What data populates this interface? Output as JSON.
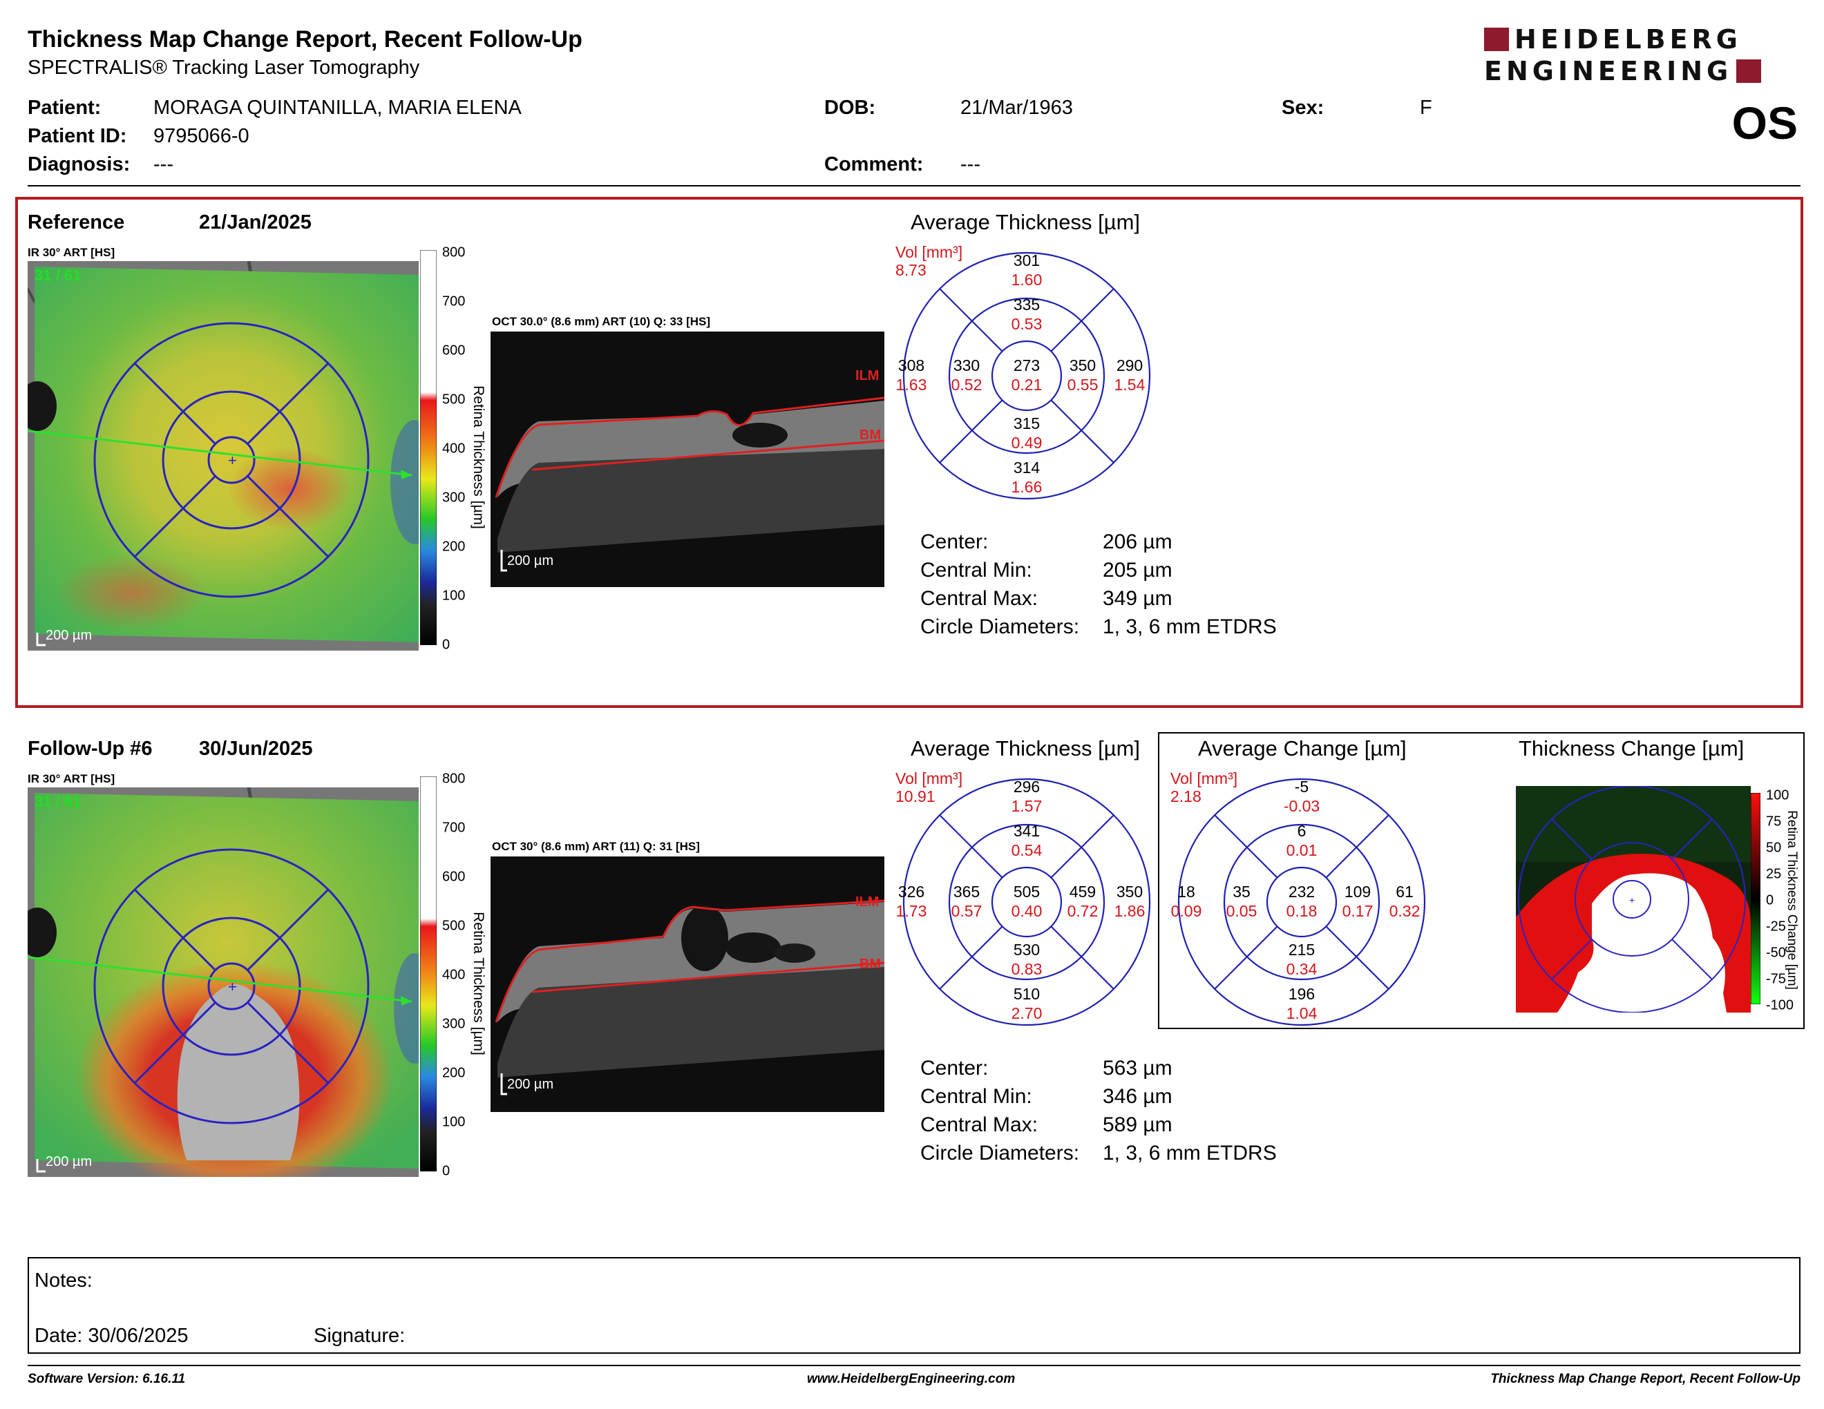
{
  "header": {
    "title": "Thickness Map Change Report, Recent Follow-Up",
    "subtitle": "SPECTRALIS® Tracking Laser Tomography",
    "logo_line1": "HEIDELBERG",
    "logo_line2": "ENGINEERING",
    "eye": "OS"
  },
  "patient": {
    "patient_label": "Patient:",
    "patient_value": "MORAGA QUINTANILLA, MARIA ELENA",
    "dob_label": "DOB:",
    "dob_value": "21/Mar/1963",
    "sex_label": "Sex:",
    "sex_value": "F",
    "id_label": "Patient ID:",
    "id_value": "9795066-0",
    "diagnosis_label": "Diagnosis:",
    "diagnosis_value": "---",
    "comment_label": "Comment:",
    "comment_value": "---"
  },
  "reference": {
    "label": "Reference",
    "date": "21/Jan/2025",
    "ir_label": "IR 30° ART [HS]",
    "ir_counter": "31 / 61",
    "oct_label": "OCT 30.0° (8.6 mm) ART (10) Q: 33 [HS]",
    "scale": "200 µm",
    "avg_title": "Average Thickness [µm]",
    "vol_label": "Vol [mm³]",
    "vol_total": "8.73",
    "sectors": {
      "center": {
        "t": "273",
        "v": "0.21"
      },
      "inner_sup": {
        "t": "335",
        "v": "0.53"
      },
      "inner_temp": {
        "t": "330",
        "v": "0.52"
      },
      "inner_nas": {
        "t": "350",
        "v": "0.55"
      },
      "inner_inf": {
        "t": "315",
        "v": "0.49"
      },
      "outer_sup": {
        "t": "301",
        "v": "1.60"
      },
      "outer_temp": {
        "t": "308",
        "v": "1.63"
      },
      "outer_nas": {
        "t": "290",
        "v": "1.54"
      },
      "outer_inf": {
        "t": "314",
        "v": "1.66"
      }
    },
    "stats": {
      "center_label": "Center:",
      "center_value": "206 µm",
      "min_label": "Central Min:",
      "min_value": "205 µm",
      "max_label": "Central Max:",
      "max_value": "349 µm",
      "diam_label": "Circle Diameters:",
      "diam_value": "1, 3, 6 mm ETDRS"
    }
  },
  "followup": {
    "label": "Follow-Up #6",
    "date": "30/Jun/2025",
    "ir_label": "IR 30° ART [HS]",
    "ir_counter": "31 / 61",
    "oct_label": "OCT 30° (8.6 mm) ART (11) Q: 31 [HS]",
    "scale": "200 µm",
    "avg_title": "Average Thickness [µm]",
    "vol_label": "Vol [mm³]",
    "vol_total": "10.91",
    "sectors": {
      "center": {
        "t": "505",
        "v": "0.40"
      },
      "inner_sup": {
        "t": "341",
        "v": "0.54"
      },
      "inner_temp": {
        "t": "365",
        "v": "0.57"
      },
      "inner_nas": {
        "t": "459",
        "v": "0.72"
      },
      "inner_inf": {
        "t": "530",
        "v": "0.83"
      },
      "outer_sup": {
        "t": "296",
        "v": "1.57"
      },
      "outer_temp": {
        "t": "326",
        "v": "1.73"
      },
      "outer_nas": {
        "t": "350",
        "v": "1.86"
      },
      "outer_inf": {
        "t": "510",
        "v": "2.70"
      }
    },
    "stats": {
      "center_label": "Center:",
      "center_value": "563 µm",
      "min_label": "Central Min:",
      "min_value": "346 µm",
      "max_label": "Central Max:",
      "max_value": "589 µm",
      "diam_label": "Circle Diameters:",
      "diam_value": "1, 3, 6 mm ETDRS"
    }
  },
  "change": {
    "avg_title": "Average Change [µm]",
    "vol_label": "Vol [mm³]",
    "vol_total": "2.18",
    "sectors": {
      "center": {
        "t": "232",
        "v": "0.18"
      },
      "inner_sup": {
        "t": "6",
        "v": "0.01"
      },
      "inner_temp": {
        "t": "35",
        "v": "0.05"
      },
      "inner_nas": {
        "t": "109",
        "v": "0.17"
      },
      "inner_inf": {
        "t": "215",
        "v": "0.34"
      },
      "outer_sup": {
        "t": "-5",
        "v": "-0.03"
      },
      "outer_temp": {
        "t": "18",
        "v": "0.09"
      },
      "outer_nas": {
        "t": "61",
        "v": "0.32"
      },
      "outer_inf": {
        "t": "196",
        "v": "1.04"
      }
    },
    "map_title": "Thickness Change [µm]",
    "map_axis_label": "Retina Thickness Change [µm]",
    "map_ticks": [
      "100",
      "75",
      "50",
      "25",
      "0",
      "-25",
      "-50",
      "-75",
      "-100"
    ]
  },
  "colorbar": {
    "ticks": [
      "800",
      "700",
      "600",
      "500",
      "400",
      "300",
      "200",
      "100",
      "0"
    ],
    "axis_label": "Retina Thickness [µm]"
  },
  "oct_labels": {
    "ilm": "ILM",
    "bm": "BM"
  },
  "notes": {
    "notes_label": "Notes:",
    "date_text": "Date: 30/06/2025",
    "signature_label": "Signature:"
  },
  "footer": {
    "version": "Software Version: 6.16.11",
    "website": "www.HeidelbergEngineering.com",
    "report": "Thickness Map Change Report, Recent Follow-Up"
  },
  "colors": {
    "accent_red": "#b11d22",
    "etdrs_blue": "#1f1fb4",
    "value_red": "#d4161b",
    "logo_red": "#8e1a2d"
  }
}
